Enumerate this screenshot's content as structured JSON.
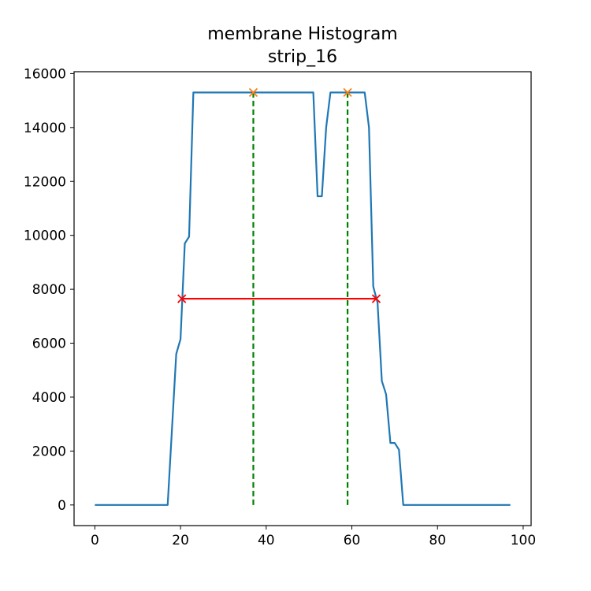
{
  "chart_data": {
    "type": "line",
    "title": "membrane Histogram",
    "subtitle": "strip_16",
    "xlabel": "",
    "ylabel": "",
    "xlim": [
      -4.85,
      101.85
    ],
    "ylim": [
      -765,
      16070
    ],
    "x_ticks": [
      0,
      20,
      40,
      60,
      80,
      100
    ],
    "y_ticks": [
      0,
      2000,
      4000,
      6000,
      8000,
      10000,
      12000,
      14000,
      16000
    ],
    "grid": false,
    "series": [
      {
        "color": "#1f77b4",
        "points": [
          [
            0,
            0
          ],
          [
            17,
            0
          ],
          [
            18,
            2800
          ],
          [
            19,
            5600
          ],
          [
            20,
            6150
          ],
          [
            21,
            9700
          ],
          [
            22,
            9950
          ],
          [
            23,
            15300
          ],
          [
            51,
            15300
          ],
          [
            52,
            11450
          ],
          [
            53,
            11450
          ],
          [
            54,
            14000
          ],
          [
            55,
            15300
          ],
          [
            63,
            15300
          ],
          [
            64,
            14000
          ],
          [
            65,
            8100
          ],
          [
            66,
            7500
          ],
          [
            67,
            4600
          ],
          [
            68,
            4100
          ],
          [
            69,
            2300
          ],
          [
            70,
            2300
          ],
          [
            71,
            2050
          ],
          [
            72,
            0
          ],
          [
            97,
            0
          ]
        ]
      }
    ],
    "peaks": {
      "color": "#ff7f0e",
      "marker": "x",
      "points": [
        [
          37,
          15300
        ],
        [
          59,
          15300
        ]
      ]
    },
    "peak_lines": {
      "color": "#008000",
      "style": "dashed",
      "x": [
        37,
        59
      ],
      "y_from": 0,
      "y_to": 15300
    },
    "width_line": {
      "color": "#ff0000",
      "marker": "x",
      "x_start": 20.3,
      "x_end": 65.7,
      "y": 7650
    }
  }
}
